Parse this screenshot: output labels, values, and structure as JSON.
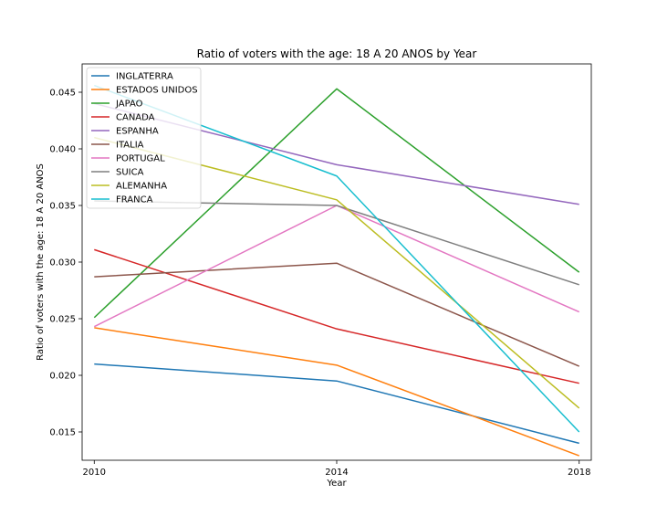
{
  "chart_data": {
    "type": "line",
    "title": "Ratio of voters with the age: 18 A 20 ANOS by Year",
    "xlabel": "Year",
    "ylabel": "Ratio of voters with the age: 18 A 20 ANOS",
    "x": [
      2010,
      2014,
      2018
    ],
    "x_ticks": [
      "2010",
      "2014",
      "2018"
    ],
    "xlim": [
      2009.8,
      2018.2
    ],
    "ylim": [
      0.0125,
      0.0475
    ],
    "y_ticks": [
      "0.015",
      "0.020",
      "0.025",
      "0.030",
      "0.035",
      "0.040",
      "0.045"
    ],
    "grid": false,
    "legend_position": "top-left",
    "series": [
      {
        "name": "INGLATERRA",
        "color": "#1f77b4",
        "values": [
          0.021,
          0.0195,
          0.014
        ]
      },
      {
        "name": "ESTADOS UNIDOS",
        "color": "#ff7f0e",
        "values": [
          0.0242,
          0.0209,
          0.0129
        ]
      },
      {
        "name": "JAPAO",
        "color": "#2ca02c",
        "values": [
          0.0251,
          0.0453,
          0.0291
        ]
      },
      {
        "name": "CANADA",
        "color": "#d62728",
        "values": [
          0.0311,
          0.0241,
          0.0193
        ]
      },
      {
        "name": "ESPANHA",
        "color": "#9467bd",
        "values": [
          0.044,
          0.0386,
          0.0351
        ]
      },
      {
        "name": "ITALIA",
        "color": "#8c564b",
        "values": [
          0.0287,
          0.0299,
          0.0208
        ]
      },
      {
        "name": "PORTUGAL",
        "color": "#e377c2",
        "values": [
          0.0243,
          0.035,
          0.0256
        ]
      },
      {
        "name": "SUICA",
        "color": "#7f7f7f",
        "values": [
          0.0354,
          0.035,
          0.028
        ]
      },
      {
        "name": "ALEMANHA",
        "color": "#bcbd22",
        "values": [
          0.041,
          0.0355,
          0.0171
        ]
      },
      {
        "name": "FRANCA",
        "color": "#17becf",
        "values": [
          0.0456,
          0.0376,
          0.015
        ]
      }
    ]
  }
}
